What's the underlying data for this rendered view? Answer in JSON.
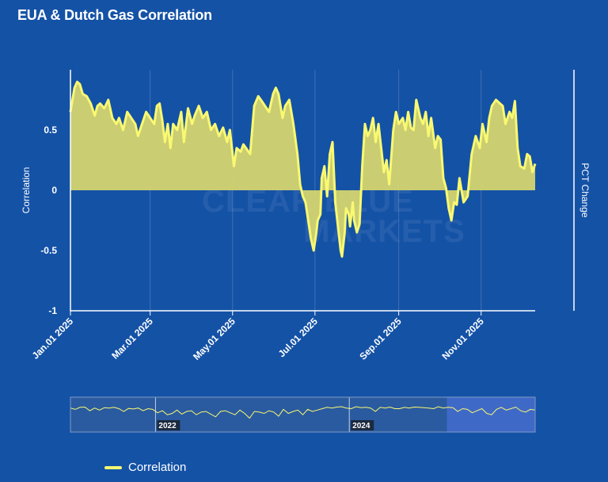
{
  "chart_data": {
    "type": "area",
    "title": "EUA & Dutch Gas Correlation",
    "ylabel": "Correlation",
    "ylabel_right": "PCT Change",
    "ylim": [
      -1,
      1
    ],
    "yticks": [
      {
        "value": 0.5,
        "label": "0.5"
      },
      {
        "value": 0,
        "label": "0"
      },
      {
        "value": -0.5,
        "label": "-0.5"
      },
      {
        "value": -1,
        "label": "-1"
      }
    ],
    "xlim": [
      0,
      344
    ],
    "xticks": [
      {
        "day": 0,
        "label": "Jan.01 2025"
      },
      {
        "day": 59,
        "label": "Mar.01 2025"
      },
      {
        "day": 120,
        "label": "May.01 2025"
      },
      {
        "day": 181,
        "label": "Jul.01 2025"
      },
      {
        "day": 243,
        "label": "Sep.01 2025"
      },
      {
        "day": 304,
        "label": "Nov.01 2025"
      }
    ],
    "series": [
      {
        "name": "Correlation",
        "color": "#f9f871",
        "x": [
          0,
          3,
          5,
          7,
          9,
          12,
          15,
          18,
          20,
          22,
          25,
          28,
          31,
          34,
          36,
          39,
          42,
          45,
          48,
          50,
          53,
          56,
          59,
          62,
          64,
          66,
          68,
          70,
          72,
          74,
          76,
          79,
          82,
          84,
          87,
          90,
          92,
          95,
          98,
          101,
          104,
          107,
          110,
          113,
          116,
          118,
          121,
          123,
          126,
          128,
          130,
          133,
          136,
          139,
          141,
          144,
          147,
          150,
          152,
          154,
          157,
          159,
          162,
          165,
          168,
          170,
          172,
          174,
          176,
          178,
          180,
          182,
          183,
          185,
          186,
          188,
          190,
          192,
          194,
          196,
          198,
          200,
          201,
          203,
          204,
          206,
          207,
          209,
          210,
          212,
          214,
          216,
          218,
          220,
          222,
          224,
          226,
          228,
          230,
          232,
          234,
          236,
          239,
          241,
          243,
          246,
          248,
          250,
          252,
          254,
          256,
          259,
          261,
          263,
          265,
          267,
          270,
          272,
          274,
          276,
          278,
          280,
          282,
          284,
          286,
          288,
          291,
          294,
          297,
          300,
          303,
          305,
          308,
          310,
          312,
          315,
          318,
          320,
          322,
          325,
          327,
          329,
          331,
          333,
          336,
          338,
          340,
          342,
          344
        ],
        "y": [
          0.65,
          0.85,
          0.9,
          0.88,
          0.8,
          0.78,
          0.72,
          0.62,
          0.7,
          0.72,
          0.68,
          0.75,
          0.6,
          0.55,
          0.6,
          0.5,
          0.65,
          0.6,
          0.55,
          0.45,
          0.55,
          0.65,
          0.6,
          0.55,
          0.7,
          0.72,
          0.58,
          0.4,
          0.55,
          0.35,
          0.55,
          0.5,
          0.65,
          0.4,
          0.68,
          0.55,
          0.62,
          0.7,
          0.6,
          0.65,
          0.5,
          0.55,
          0.45,
          0.52,
          0.4,
          0.5,
          0.2,
          0.35,
          0.32,
          0.38,
          0.35,
          0.3,
          0.7,
          0.78,
          0.75,
          0.7,
          0.65,
          0.8,
          0.85,
          0.8,
          0.6,
          0.7,
          0.75,
          0.55,
          0.3,
          0.05,
          -0.05,
          -0.1,
          -0.25,
          -0.4,
          -0.5,
          -0.35,
          -0.25,
          -0.2,
          0.1,
          0.2,
          -0.05,
          0.3,
          0.4,
          -0.1,
          -0.3,
          -0.5,
          -0.55,
          -0.35,
          -0.15,
          -0.2,
          -0.3,
          -0.1,
          -0.25,
          -0.35,
          -0.28,
          0.2,
          0.55,
          0.45,
          0.5,
          0.6,
          0.4,
          0.55,
          0.35,
          0.15,
          0.25,
          0.05,
          0.5,
          0.65,
          0.55,
          0.6,
          0.5,
          0.65,
          0.52,
          0.5,
          0.75,
          0.6,
          0.55,
          0.65,
          0.45,
          0.6,
          0.35,
          0.45,
          0.42,
          0.1,
          0.02,
          -0.15,
          -0.25,
          -0.1,
          -0.12,
          0.1,
          -0.1,
          -0.05,
          0.3,
          0.45,
          0.35,
          0.55,
          0.4,
          0.6,
          0.7,
          0.75,
          0.72,
          0.7,
          0.55,
          0.65,
          0.6,
          0.74,
          0.35,
          0.2,
          0.18,
          0.3,
          0.28,
          0.15,
          0.22
        ]
      }
    ]
  },
  "navigator": {
    "year_labels": [
      "2022",
      "2024"
    ],
    "selection_start": 0.81,
    "series": [
      0.55,
      0.45,
      0.6,
      0.62,
      0.35,
      0.55,
      0.4,
      0.58,
      0.55,
      0.6,
      0.5,
      0.3,
      0.52,
      0.48,
      0.55,
      0.35,
      0.5,
      0.45,
      0.2,
      0.35,
      0.05,
      0.15,
      0.4,
      0.1,
      0.3,
      0.35,
      0.05,
      0.25,
      0.3,
      0.1,
      -0.1,
      0.3,
      0.35,
      0.2,
      0.05,
      0.4,
      0.15,
      -0.2,
      0.3,
      0.25,
      0.15,
      0.35,
      0.25,
      -0.05,
      0.45,
      0.15,
      0.3,
      0.4,
      0.05,
      0.45,
      0.3,
      0.4,
      0.5,
      0.6,
      0.55,
      0.62,
      0.65,
      0.55,
      0.5,
      0.65,
      0.58,
      0.6,
      0.55,
      0.3,
      0.6,
      0.55,
      0.62,
      0.5,
      0.5,
      0.6,
      0.55,
      0.62,
      0.6,
      0.58,
      0.55,
      0.5,
      0.65,
      0.55,
      0.6,
      0.58,
      0.3,
      0.5,
      0.45,
      0.2,
      0.35,
      0.5,
      0.15,
      0.05,
      0.45,
      0.6,
      0.4,
      0.5,
      0.62,
      0.35,
      0.25,
      0.45,
      0.4
    ]
  },
  "legend": {
    "label": "Correlation"
  },
  "watermark": {
    "line1": "CLEAR BLUE",
    "line2": "MARKETS"
  }
}
